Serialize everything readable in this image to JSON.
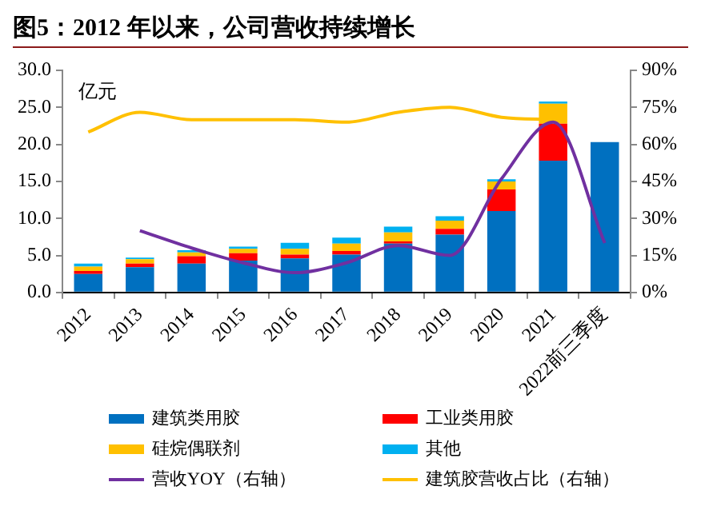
{
  "chart_data": {
    "type": "bar",
    "title": "图5：2012 年以来，公司营收持续增长",
    "annotations": [
      "亿元"
    ],
    "categories": [
      "2012",
      "2013",
      "2014",
      "2015",
      "2016",
      "2017",
      "2018",
      "2019",
      "2020",
      "2021",
      "2022前三季度"
    ],
    "stacked": true,
    "legend": "bottom",
    "ylim": [
      0,
      30
    ],
    "yticks": [
      {
        "value": 0,
        "label": "0.0"
      },
      {
        "value": 5,
        "label": "5.0"
      },
      {
        "value": 10,
        "label": "10.0"
      },
      {
        "value": 15,
        "label": "15.0"
      },
      {
        "value": 20,
        "label": "20.0"
      },
      {
        "value": 25,
        "label": "25.0"
      },
      {
        "value": 30,
        "label": "30.0"
      }
    ],
    "y2lim": [
      0,
      90
    ],
    "y2ticks": [
      {
        "value": 0,
        "label": "0%"
      },
      {
        "value": 15,
        "label": "15%"
      },
      {
        "value": 30,
        "label": "30%"
      },
      {
        "value": 45,
        "label": "45%"
      },
      {
        "value": 60,
        "label": "60%"
      },
      {
        "value": 75,
        "label": "75%"
      },
      {
        "value": 90,
        "label": "90%"
      }
    ],
    "series": [
      {
        "name": "建筑类用胶",
        "color": "#0070c0",
        "values": [
          2.5,
          3.4,
          3.9,
          4.3,
          4.6,
          5.1,
          6.6,
          7.8,
          11.0,
          17.8,
          20.3
        ]
      },
      {
        "name": "工业类用胶",
        "color": "#ff0000",
        "values": [
          0.4,
          0.5,
          1.0,
          1.0,
          0.5,
          0.5,
          0.3,
          0.8,
          2.9,
          5.0,
          null
        ]
      },
      {
        "name": "硅烷偶联剂",
        "color": "#ffc000",
        "values": [
          0.6,
          0.6,
          0.5,
          0.6,
          0.8,
          1.0,
          1.2,
          1.1,
          1.1,
          2.7,
          null
        ]
      },
      {
        "name": "其他",
        "color": "#00b0f0",
        "values": [
          0.4,
          0.2,
          0.3,
          0.3,
          0.8,
          0.8,
          0.8,
          0.6,
          0.3,
          0.3,
          null
        ]
      },
      {
        "name": "营收YOY（右轴）",
        "type": "line",
        "axis": "y2",
        "color": "#7030a0",
        "values": [
          null,
          25,
          18,
          12,
          8,
          12,
          19,
          15,
          46,
          69,
          20
        ]
      },
      {
        "name": "建筑胶营收占比（右轴）",
        "type": "line",
        "axis": "y2",
        "color": "#ffc000",
        "values": [
          65,
          73,
          70,
          70,
          70,
          69,
          73,
          75,
          71,
          70,
          null
        ]
      }
    ]
  }
}
